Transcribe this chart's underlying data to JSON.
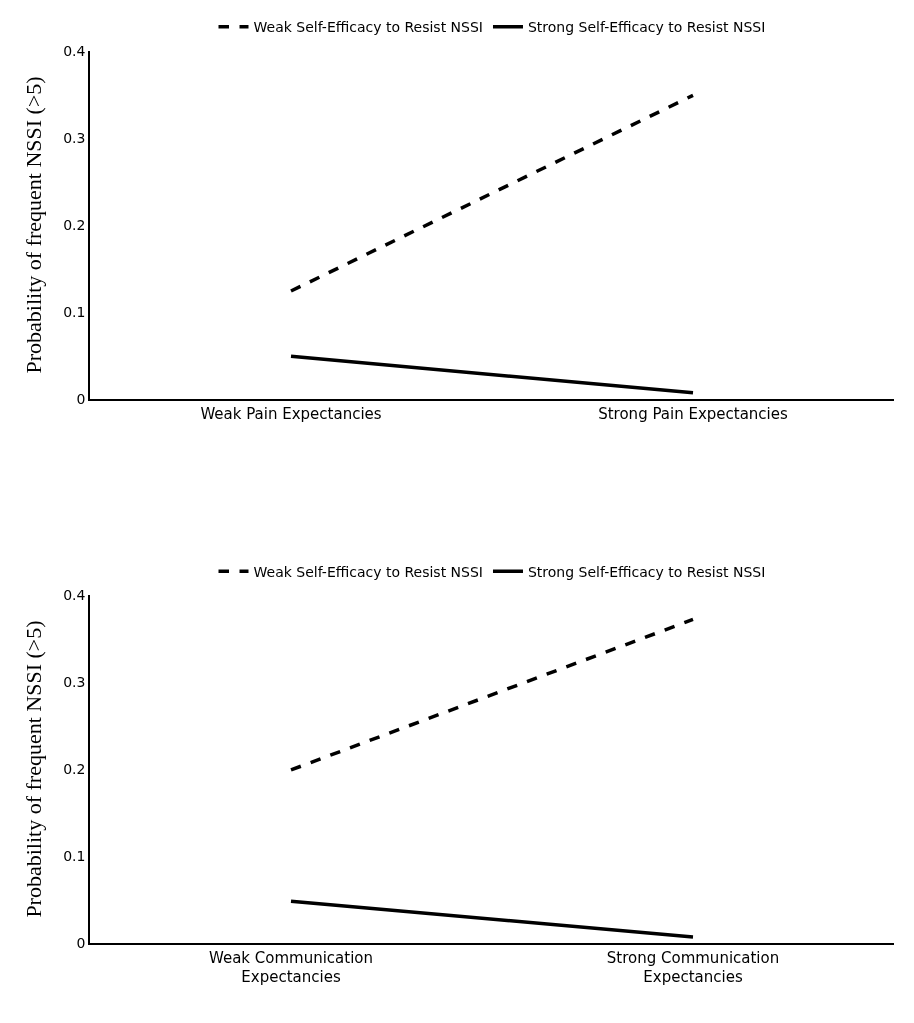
{
  "chart_data": [
    {
      "type": "line",
      "ylabel": "Probability of frequent NSSI (>5)",
      "categories": [
        "Weak Pain Expectancies",
        "Strong Pain Expectancies"
      ],
      "series": [
        {
          "name": "Weak Self-Efficacy to Resist NSSI",
          "color": "#000000",
          "line_style": "dashed",
          "values": [
            0.124,
            0.349
          ]
        },
        {
          "name": "Strong Self-Efficacy to Resist NSSI",
          "color": "#000000",
          "line_style": "solid",
          "values": [
            0.049,
            0.007
          ]
        }
      ],
      "ylim": [
        0,
        0.4
      ],
      "yticks": [
        0,
        0.1,
        0.2,
        0.3,
        0.4
      ],
      "legend": "top",
      "grid": false
    },
    {
      "type": "line",
      "ylabel": "Probability of frequent NSSI (>5)",
      "categories": [
        "Weak Communication Expectancies",
        "Strong Communication Expectancies"
      ],
      "series": [
        {
          "name": "Weak Self-Efficacy to Resist NSSI",
          "color": "#000000",
          "line_style": "dashed",
          "values": [
            0.199,
            0.372
          ]
        },
        {
          "name": "Strong Self-Efficacy to Resist NSSI",
          "color": "#000000",
          "line_style": "solid",
          "values": [
            0.048,
            0.007
          ]
        }
      ],
      "ylim": [
        0,
        0.4
      ],
      "yticks": [
        0,
        0.1,
        0.2,
        0.3,
        0.4
      ],
      "legend": "top",
      "grid": false
    }
  ]
}
